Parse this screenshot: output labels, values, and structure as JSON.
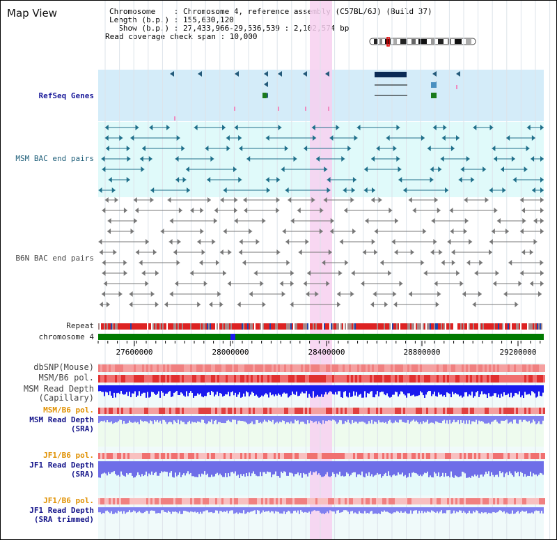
{
  "title": "Map View",
  "info": {
    "chromosome_label": "Chromosome    : Chromosome 4, reference assembly (C57BL/6J) (Build 37)",
    "length_label": "Length (b.p.) : 155,630,120",
    "show_label": "  Show (b.p.) : 27,433,966-29,536,539 : 2,102,574 bp",
    "coverage_label": "Read coverage check span : 10,000"
  },
  "tracks": {
    "refseq": "RefSeq Genes",
    "msm_bac": "MSM BAC end pairs",
    "b6n_bac": "B6N BAC end pairs",
    "repeat": "Repeat",
    "chromosome": "chromosome 4",
    "dbsnp": "dbSNP(Mouse)",
    "msm_b6_pol_1": "MSM/B6 pol.",
    "msm_read_depth_cap": "MSM Read Depth\n(Capillary)",
    "msm_b6_pol_2": "MSM/B6 pol.",
    "msm_read_depth_sra": "MSM Read Depth\n(SRA)",
    "jf1_b6_pol_1": "JF1/B6 pol.",
    "jf1_read_depth_sra": "JF1 Read Depth\n(SRA)",
    "jf1_b6_pol_2": "JF1/B6 pol.",
    "jf1_read_depth_trimmed": "JF1 Read Depth\n(SRA trimmed)"
  },
  "ruler": {
    "ticks": [
      "27600000",
      "28000000",
      "28400000",
      "28800000",
      "29200000"
    ]
  },
  "colors": {
    "refseq_bg": "#d4ecf9",
    "msm_bg": "#e0fafa",
    "highlight": "#f7d0f0",
    "chrom_green": "#007a00",
    "repeat_red": "#dd2222",
    "depth_blue": "#1a1aee",
    "sra_blue": "#8080f0"
  }
}
